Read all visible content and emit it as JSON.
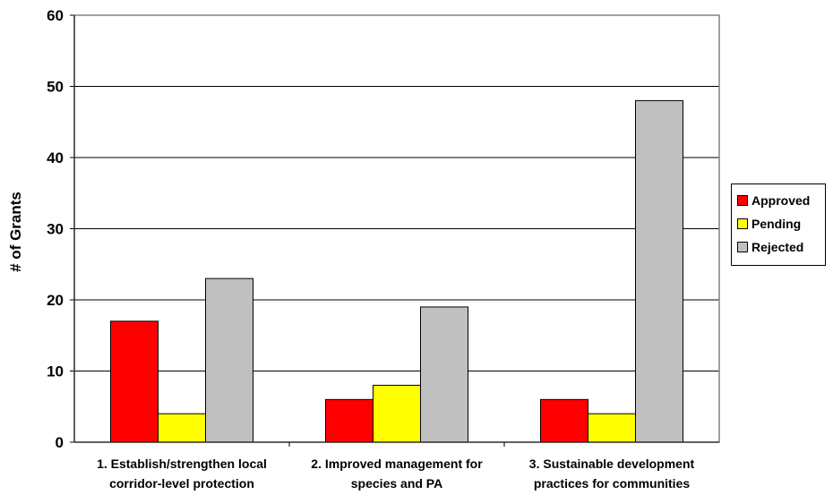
{
  "chart_data": {
    "type": "bar",
    "categories": [
      [
        "1. Establish/strengthen local",
        "corridor-level protection"
      ],
      [
        "2. Improved management for",
        "species and PA"
      ],
      [
        "3. Sustainable development",
        "practices for communities"
      ]
    ],
    "series": [
      {
        "name": "Approved",
        "color": "#ff0000",
        "values": [
          17,
          6,
          6
        ]
      },
      {
        "name": "Pending",
        "color": "#ffff00",
        "values": [
          4,
          8,
          4
        ]
      },
      {
        "name": "Rejected",
        "color": "#c0c0c0",
        "values": [
          23,
          19,
          48
        ]
      }
    ],
    "ylabel": "# of Grants",
    "xlabel": "",
    "ylim": [
      0,
      60
    ],
    "yticks": [
      0,
      10,
      20,
      30,
      40,
      50,
      60
    ],
    "grid": true,
    "legend": "right"
  }
}
